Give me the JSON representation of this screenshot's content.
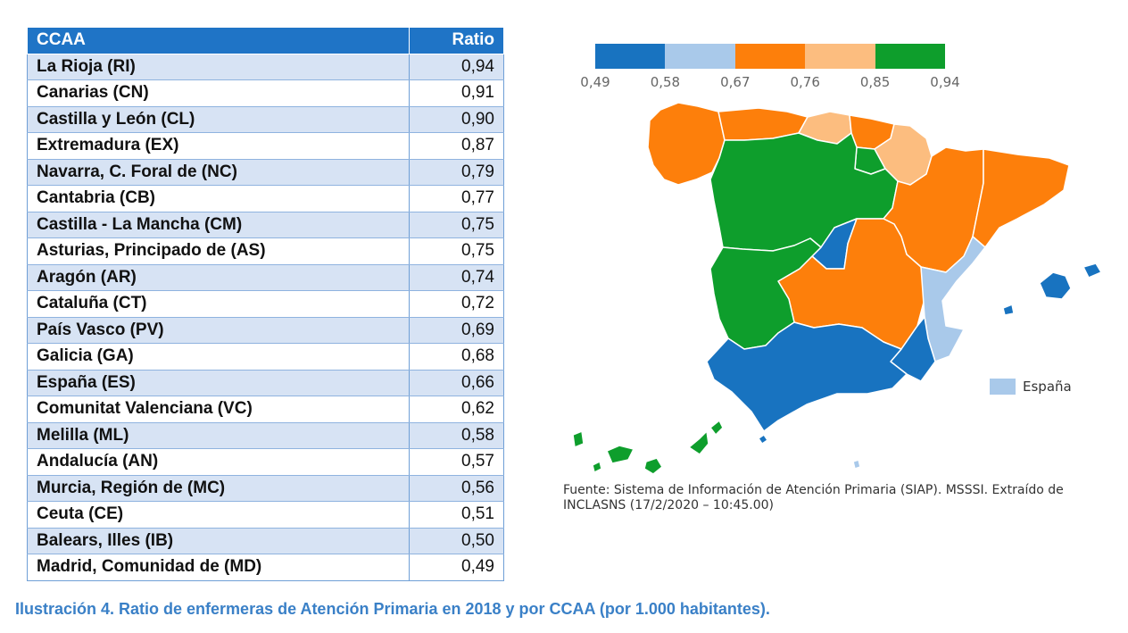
{
  "table": {
    "headers": {
      "region": "CCAA",
      "ratio": "Ratio"
    },
    "rows": [
      {
        "region": "La Rioja (RI)",
        "ratio": "0,94"
      },
      {
        "region": "Canarias (CN)",
        "ratio": "0,91"
      },
      {
        "region": "Castilla y León (CL)",
        "ratio": "0,90"
      },
      {
        "region": "Extremadura (EX)",
        "ratio": "0,87"
      },
      {
        "region": "Navarra, C. Foral de (NC)",
        "ratio": "0,79"
      },
      {
        "region": "Cantabria (CB)",
        "ratio": "0,77"
      },
      {
        "region": "Castilla - La Mancha (CM)",
        "ratio": "0,75"
      },
      {
        "region": "Asturias, Principado de (AS)",
        "ratio": "0,75"
      },
      {
        "region": "Aragón (AR)",
        "ratio": "0,74"
      },
      {
        "region": "Cataluña (CT)",
        "ratio": "0,72"
      },
      {
        "region": "País Vasco (PV)",
        "ratio": "0,69"
      },
      {
        "region": "Galicia (GA)",
        "ratio": "0,68"
      },
      {
        "region": "España (ES)",
        "ratio": "0,66"
      },
      {
        "region": "Comunitat Valenciana (VC)",
        "ratio": "0,62"
      },
      {
        "region": "Melilla (ML)",
        "ratio": "0,58"
      },
      {
        "region": "Andalucía (AN)",
        "ratio": "0,57"
      },
      {
        "region": "Murcia, Región de (MC)",
        "ratio": "0,56"
      },
      {
        "region": "Ceuta (CE)",
        "ratio": "0,51"
      },
      {
        "region": "Balears, Illes (IB)",
        "ratio": "0,50"
      },
      {
        "region": "Madrid, Comunidad de (MD)",
        "ratio": "0,49"
      }
    ]
  },
  "caption": "Ilustración 4. Ratio de enfermeras de Atención Primaria en 2018 y por CCAA (por 1.000 habitantes).",
  "legend": {
    "colors": [
      "#1873c0",
      "#a9c9ea",
      "#fd7f0b",
      "#fcbd7f",
      "#0e9e2c"
    ],
    "ticks": [
      "0,49",
      "0,58",
      "0,67",
      "0,76",
      "0,85",
      "0,94"
    ]
  },
  "map": {
    "colors": {
      "blue": "#1873c0",
      "light_blue": "#a9c9ea",
      "orange": "#fd7f0b",
      "light_orange": "#fcbd7f",
      "green": "#0e9e2c",
      "border": "#ffffff"
    },
    "espana_label": "España"
  },
  "source": "Fuente: Sistema de Información de Atención Primaria (SIAP). MSSSI. Extraído de INCLASNS (17/2/2020 – 10:45.00)"
}
